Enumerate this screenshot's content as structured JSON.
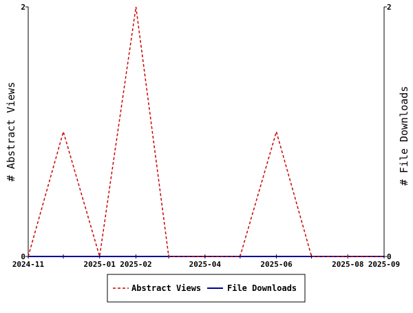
{
  "chart_data": {
    "type": "line",
    "x": [
      "2024-11",
      "2024-12",
      "2025-01",
      "2025-02",
      "2025-03",
      "2025-04",
      "2025-05",
      "2025-06",
      "2025-07",
      "2025-08",
      "2025-09"
    ],
    "xticks": [
      "2024-11",
      "2025-01",
      "2025-02",
      "2025-04",
      "2025-06",
      "2025-08",
      "2025-09"
    ],
    "series": [
      {
        "name": "Abstract Views",
        "values": [
          0,
          1,
          0,
          2,
          0,
          0,
          0,
          1,
          0,
          0,
          0
        ],
        "color": "#cc0000",
        "style": "dashed",
        "axis": "left"
      },
      {
        "name": "File Downloads",
        "values": [
          0,
          0,
          0,
          0,
          0,
          0,
          0,
          0,
          0,
          0,
          0
        ],
        "color": "#000099",
        "style": "solid",
        "axis": "right"
      }
    ],
    "ylabel": "# Abstract Views",
    "y2label": "# File Downloads",
    "ylim": [
      0,
      2
    ],
    "y2lim": [
      0,
      2
    ],
    "yticks": [
      "0",
      "2"
    ],
    "y2ticks": [
      "0",
      "2"
    ],
    "grid": false,
    "legend_position": "bottom-center"
  }
}
